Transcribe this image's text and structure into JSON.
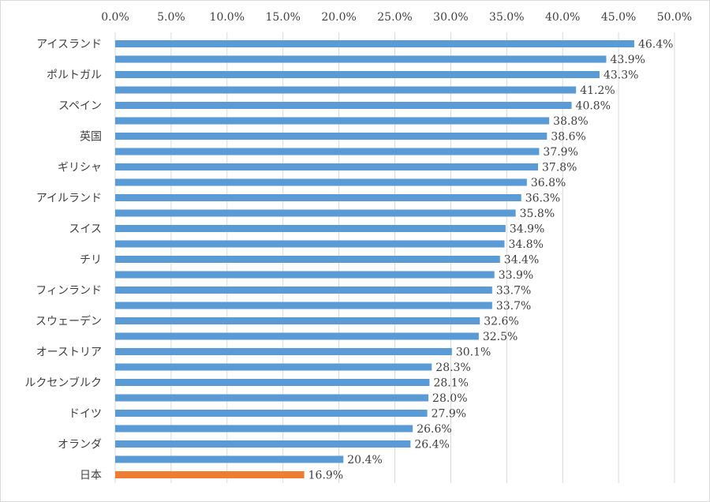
{
  "chart_data": {
    "type": "bar",
    "orientation": "horizontal",
    "title": "",
    "xlabel": "",
    "ylabel": "",
    "x_axis_position": "top",
    "xlim": [
      0,
      50
    ],
    "x_ticks": [
      "0.0%",
      "5.0%",
      "10.0%",
      "15.0%",
      "20.0%",
      "25.0%",
      "30.0%",
      "35.0%",
      "40.0%",
      "45.0%",
      "50.0%"
    ],
    "grid": true,
    "legend": "none",
    "colors": {
      "default": "#5b9bd5",
      "highlight": "#ed7d31"
    },
    "categories": [
      "アイスランド",
      "",
      "ポルトガル",
      "",
      "スペイン",
      "",
      "英国",
      "",
      "ギリシャ",
      "",
      "アイルランド",
      "",
      "スイス",
      "",
      "チリ",
      "",
      "フィンランド",
      "",
      "スウェーデン",
      "",
      "オーストリア",
      "",
      "ルクセンブルク",
      "",
      "ドイツ",
      "",
      "オランダ",
      "",
      "日本"
    ],
    "values": [
      46.4,
      43.9,
      43.3,
      41.2,
      40.8,
      38.8,
      38.6,
      37.9,
      37.8,
      36.8,
      36.3,
      35.8,
      34.9,
      34.8,
      34.4,
      33.9,
      33.7,
      33.7,
      32.6,
      32.5,
      30.1,
      28.3,
      28.1,
      28.0,
      27.9,
      26.6,
      26.4,
      20.4,
      16.9
    ],
    "value_labels": [
      "46.4%",
      "43.9%",
      "43.3%",
      "41.2%",
      "40.8%",
      "38.8%",
      "38.6%",
      "37.9%",
      "37.8%",
      "36.8%",
      "36.3%",
      "35.8%",
      "34.9%",
      "34.8%",
      "34.4%",
      "33.9%",
      "33.7%",
      "33.7%",
      "32.6%",
      "32.5%",
      "30.1%",
      "28.3%",
      "28.1%",
      "28.0%",
      "27.9%",
      "26.6%",
      "26.4%",
      "20.4%",
      "16.9%"
    ],
    "highlight_index": 28
  }
}
